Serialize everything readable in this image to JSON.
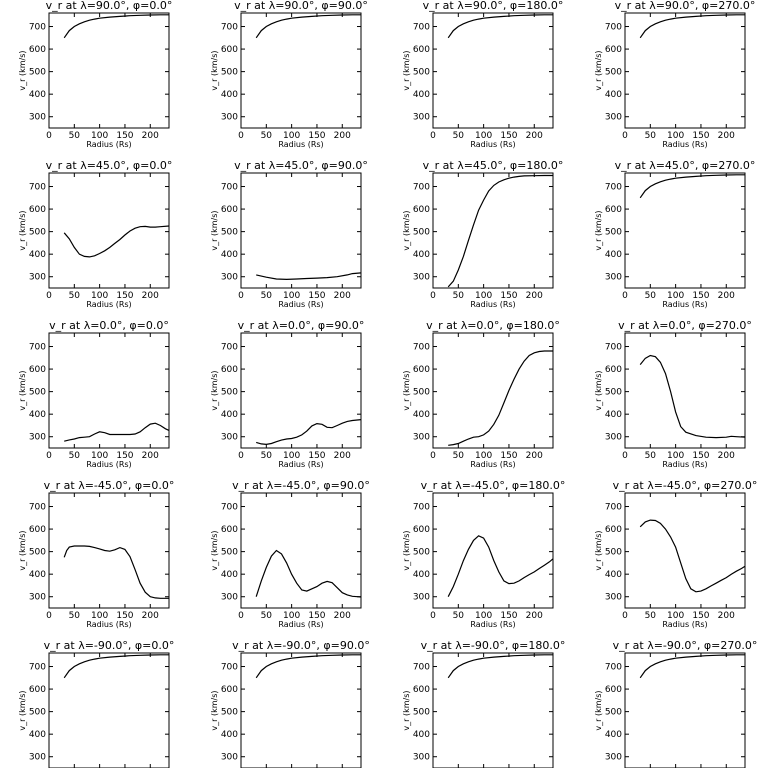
{
  "chart_data": {
    "type": "line",
    "layout": "5x4 grid",
    "xlim": [
      0,
      237
    ],
    "ylim": [
      250,
      760
    ],
    "xticks": [
      "0",
      "50",
      "100",
      "150",
      "200"
    ],
    "yticks": [
      "300",
      "400",
      "500",
      "600",
      "700"
    ],
    "xlabel": "Radius (Rs)",
    "ylabel": "v_r (km/s)",
    "panels": [
      {
        "title": "v_r at λ=90.0°, φ=0.0°",
        "x": [
          30,
          40,
          50,
          60,
          70,
          80,
          90,
          100,
          120,
          140,
          160,
          180,
          200,
          220,
          237
        ],
        "y": [
          650,
          682,
          700,
          712,
          721,
          728,
          733,
          737,
          742,
          745,
          748,
          750,
          751,
          752,
          752
        ]
      },
      {
        "title": "v_r at λ=90.0°, φ=90.0°",
        "x": [
          30,
          40,
          50,
          60,
          70,
          80,
          90,
          100,
          120,
          140,
          160,
          180,
          200,
          220,
          237
        ],
        "y": [
          650,
          682,
          700,
          712,
          721,
          728,
          733,
          737,
          742,
          745,
          748,
          750,
          751,
          752,
          752
        ]
      },
      {
        "title": "v_r at λ=90.0°, φ=180.0°",
        "x": [
          30,
          40,
          50,
          60,
          70,
          80,
          90,
          100,
          120,
          140,
          160,
          180,
          200,
          220,
          237
        ],
        "y": [
          650,
          682,
          700,
          712,
          721,
          728,
          733,
          737,
          742,
          745,
          748,
          750,
          751,
          752,
          752
        ]
      },
      {
        "title": "v_r at λ=90.0°, φ=270.0°",
        "x": [
          30,
          40,
          50,
          60,
          70,
          80,
          90,
          100,
          120,
          140,
          160,
          180,
          200,
          220,
          237
        ],
        "y": [
          650,
          682,
          700,
          712,
          721,
          728,
          733,
          737,
          742,
          745,
          748,
          750,
          751,
          752,
          752
        ]
      },
      {
        "title": "v_r at λ=45.0°, φ=0.0°",
        "x": [
          30,
          40,
          50,
          60,
          70,
          80,
          90,
          100,
          110,
          120,
          130,
          140,
          150,
          160,
          170,
          180,
          190,
          200,
          210,
          220,
          237
        ],
        "y": [
          495,
          468,
          430,
          400,
          390,
          388,
          393,
          403,
          415,
          430,
          448,
          465,
          485,
          503,
          515,
          522,
          523,
          520,
          520,
          522,
          525
        ]
      },
      {
        "title": "v_r at λ=45.0°, φ=90.0°",
        "x": [
          30,
          50,
          70,
          90,
          110,
          130,
          150,
          170,
          190,
          210,
          220,
          237
        ],
        "y": [
          308,
          298,
          290,
          288,
          290,
          292,
          294,
          296,
          300,
          308,
          314,
          317
        ]
      },
      {
        "title": "v_r at λ=45.0°, φ=180.0°",
        "x": [
          30,
          40,
          50,
          60,
          70,
          80,
          90,
          100,
          110,
          120,
          130,
          140,
          150,
          160,
          170,
          180,
          200,
          220,
          237
        ],
        "y": [
          255,
          280,
          330,
          390,
          460,
          530,
          595,
          640,
          680,
          705,
          720,
          730,
          737,
          742,
          745,
          747,
          748,
          749,
          749
        ]
      },
      {
        "title": "v_r at λ=45.0°, φ=270.0°",
        "x": [
          30,
          40,
          50,
          60,
          70,
          80,
          90,
          100,
          120,
          140,
          160,
          180,
          200,
          220,
          237
        ],
        "y": [
          650,
          682,
          700,
          712,
          721,
          728,
          733,
          737,
          742,
          745,
          748,
          750,
          751,
          752,
          752
        ]
      },
      {
        "title": "v_r at λ=0.0°, φ=0.0°",
        "x": [
          30,
          40,
          50,
          60,
          70,
          80,
          90,
          100,
          110,
          120,
          130,
          140,
          150,
          160,
          170,
          180,
          190,
          200,
          210,
          220,
          230,
          237
        ],
        "y": [
          280,
          286,
          290,
          296,
          298,
          300,
          312,
          322,
          318,
          310,
          310,
          310,
          310,
          310,
          312,
          322,
          340,
          356,
          360,
          350,
          335,
          328
        ]
      },
      {
        "title": "v_r at λ=0.0°, φ=90.0°",
        "x": [
          30,
          40,
          50,
          60,
          70,
          80,
          90,
          100,
          110,
          120,
          130,
          140,
          150,
          160,
          170,
          180,
          190,
          200,
          210,
          220,
          237
        ],
        "y": [
          275,
          268,
          266,
          270,
          278,
          285,
          290,
          292,
          298,
          308,
          325,
          348,
          358,
          355,
          342,
          340,
          350,
          360,
          368,
          372,
          376
        ]
      },
      {
        "title": "v_r at λ=0.0°, φ=180.0°",
        "x": [
          30,
          40,
          50,
          60,
          70,
          80,
          90,
          100,
          110,
          120,
          130,
          140,
          150,
          160,
          170,
          180,
          190,
          200,
          210,
          220,
          237
        ],
        "y": [
          262,
          265,
          270,
          280,
          290,
          298,
          300,
          308,
          325,
          355,
          395,
          450,
          505,
          555,
          600,
          635,
          660,
          672,
          678,
          680,
          680
        ]
      },
      {
        "title": "v_r at λ=0.0°, φ=270.0°",
        "x": [
          30,
          40,
          50,
          60,
          70,
          80,
          90,
          100,
          110,
          120,
          140,
          160,
          180,
          200,
          210,
          220,
          237
        ],
        "y": [
          620,
          648,
          660,
          655,
          630,
          580,
          500,
          410,
          345,
          320,
          305,
          298,
          296,
          298,
          302,
          300,
          298
        ]
      },
      {
        "title": "v_r at λ=-45.0°, φ=0.0°",
        "x": [
          30,
          35,
          40,
          50,
          60,
          70,
          80,
          90,
          100,
          110,
          120,
          130,
          140,
          150,
          160,
          170,
          180,
          190,
          200,
          210,
          220,
          230,
          237
        ],
        "y": [
          475,
          505,
          520,
          525,
          525,
          525,
          523,
          518,
          512,
          505,
          502,
          508,
          518,
          510,
          478,
          420,
          360,
          320,
          300,
          295,
          293,
          293,
          293
        ]
      },
      {
        "title": "v_r at λ=-45.0°, φ=90.0°",
        "x": [
          30,
          40,
          50,
          60,
          70,
          80,
          90,
          100,
          110,
          120,
          130,
          140,
          150,
          160,
          170,
          180,
          190,
          200,
          210,
          220,
          230,
          237
        ],
        "y": [
          300,
          370,
          430,
          480,
          505,
          490,
          450,
          400,
          360,
          330,
          325,
          335,
          345,
          360,
          368,
          362,
          340,
          318,
          308,
          302,
          300,
          299
        ]
      },
      {
        "title": "v_r at λ=-45.0°, φ=180.0°",
        "x": [
          30,
          40,
          50,
          60,
          70,
          80,
          90,
          100,
          110,
          120,
          130,
          140,
          150,
          160,
          170,
          180,
          190,
          200,
          210,
          220,
          230,
          237
        ],
        "y": [
          300,
          345,
          400,
          460,
          510,
          550,
          570,
          560,
          520,
          460,
          410,
          370,
          358,
          360,
          370,
          385,
          398,
          410,
          425,
          440,
          455,
          468
        ]
      },
      {
        "title": "v_r at λ=-45.0°, φ=270.0°",
        "x": [
          30,
          40,
          50,
          60,
          70,
          80,
          90,
          100,
          110,
          120,
          130,
          140,
          150,
          160,
          170,
          180,
          190,
          200,
          210,
          220,
          230,
          237
        ],
        "y": [
          610,
          632,
          640,
          638,
          625,
          600,
          565,
          520,
          450,
          380,
          335,
          322,
          325,
          335,
          348,
          360,
          373,
          385,
          400,
          413,
          425,
          435
        ]
      },
      {
        "title": "v_r at λ=-90.0°, φ=0.0°",
        "x": [
          30,
          40,
          50,
          60,
          70,
          80,
          90,
          100,
          120,
          140,
          160,
          180,
          200,
          220,
          237
        ],
        "y": [
          650,
          682,
          700,
          712,
          721,
          728,
          733,
          737,
          742,
          745,
          748,
          750,
          751,
          752,
          752
        ]
      },
      {
        "title": "v_r at λ=-90.0°, φ=90.0°",
        "x": [
          30,
          40,
          50,
          60,
          70,
          80,
          90,
          100,
          120,
          140,
          160,
          180,
          200,
          220,
          237
        ],
        "y": [
          650,
          682,
          700,
          712,
          721,
          728,
          733,
          737,
          742,
          745,
          748,
          750,
          751,
          752,
          752
        ]
      },
      {
        "title": "v_r at λ=-90.0°, φ=180.0°",
        "x": [
          30,
          40,
          50,
          60,
          70,
          80,
          90,
          100,
          120,
          140,
          160,
          180,
          200,
          220,
          237
        ],
        "y": [
          650,
          682,
          700,
          712,
          721,
          728,
          733,
          737,
          742,
          745,
          748,
          750,
          751,
          752,
          752
        ]
      },
      {
        "title": "v_r at λ=-90.0°, φ=270.0°",
        "x": [
          30,
          40,
          50,
          60,
          70,
          80,
          90,
          100,
          120,
          140,
          160,
          180,
          200,
          220,
          237
        ],
        "y": [
          650,
          682,
          700,
          712,
          721,
          728,
          733,
          737,
          742,
          745,
          748,
          750,
          751,
          752,
          752
        ]
      }
    ]
  }
}
